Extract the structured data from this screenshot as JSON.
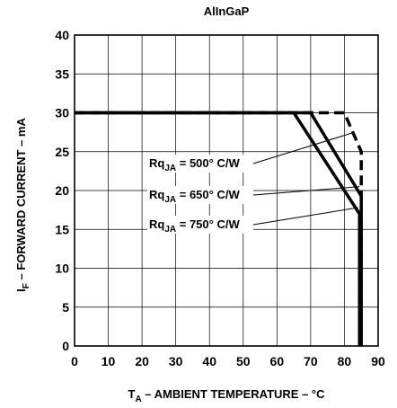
{
  "chart_data": {
    "type": "line",
    "title": "AlInGaP",
    "xlabel": {
      "main": "T",
      "sub": "A",
      "rest": " – AMBIENT TEMPERATURE – °C"
    },
    "ylabel": {
      "main": "I",
      "sub": "F",
      "rest": " – FORWARD CURRENT – mA"
    },
    "xlim": [
      0,
      90
    ],
    "ylim": [
      0,
      40
    ],
    "xticks": [
      "0",
      "10",
      "20",
      "30",
      "40",
      "50",
      "60",
      "70",
      "80",
      "90"
    ],
    "yticks": [
      "0",
      "5",
      "10",
      "15",
      "20",
      "25",
      "30",
      "35",
      "40"
    ],
    "grid": true,
    "series": [
      {
        "name": "Rq JA = 500° C/W",
        "style": "dashed",
        "x": [
          0,
          80,
          85,
          85
        ],
        "y": [
          30,
          30,
          25,
          0
        ]
      },
      {
        "name": "Rq JA = 650° C/W",
        "style": "solid",
        "x": [
          0,
          70,
          85,
          85
        ],
        "y": [
          30,
          30,
          19.3,
          0
        ]
      },
      {
        "name": "Rq JA = 750° C/W",
        "style": "solid",
        "x": [
          0,
          65,
          84.5,
          84.5
        ],
        "y": [
          30,
          30,
          17,
          0
        ]
      }
    ],
    "annotations": [
      {
        "pre": "Rq",
        "sub": "JA",
        "post": " = 500° C/W",
        "target": [
          83,
          27.5
        ]
      },
      {
        "pre": "Rq",
        "sub": "JA",
        "post": " = 650° C/W",
        "target": [
          84.5,
          20.5
        ]
      },
      {
        "pre": "Rq",
        "sub": "JA",
        "post": " = 750° C/W",
        "target": [
          84,
          17.8
        ]
      }
    ]
  }
}
